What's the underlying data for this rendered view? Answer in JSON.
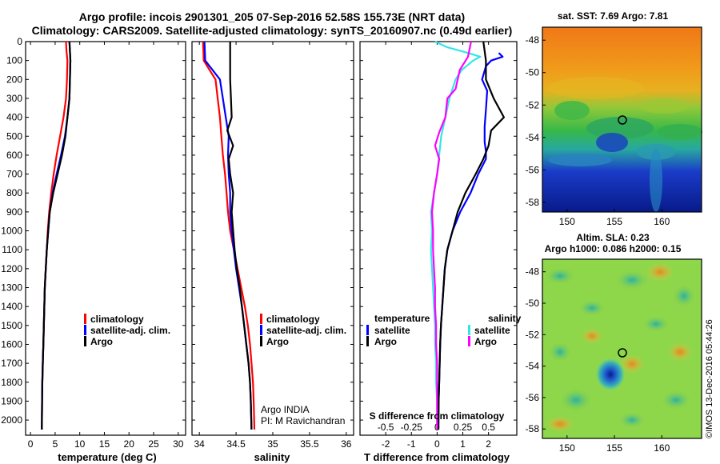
{
  "header": {
    "line1": "Argo profile: incois 2901301_205 07-Sep-2016 52.58S 155.73E (NRT data)",
    "line2": "Climatology: CARS2009. Satellite-adjusted climatology: synTS_20160907.nc (0.49d earlier)"
  },
  "colors": {
    "climatology": "#ff0000",
    "satellite": "#0000ff",
    "argo": "#000000",
    "sal_satellite": "#33e6e6",
    "sal_climatology": "#ff00ff"
  },
  "chart_data": [
    {
      "type": "line",
      "xlabel": "temperature (deg C)",
      "ylabel": "",
      "xlim": [
        -1,
        31.5
      ],
      "ylim": [
        2080,
        0
      ],
      "xticks": [
        "0",
        "5",
        "10",
        "15",
        "20",
        "25",
        "30"
      ],
      "yticks": [
        "0",
        "100",
        "200",
        "300",
        "400",
        "500",
        "600",
        "700",
        "800",
        "900",
        "1000",
        "1100",
        "1200",
        "1300",
        "1400",
        "1500",
        "1600",
        "1700",
        "1800",
        "1900",
        "2000"
      ],
      "legend": [
        "climatology",
        "satellite-adj. clim.",
        "Argo"
      ],
      "series": [
        {
          "name": "climatology",
          "color": "#ff0000",
          "points": [
            [
              7.2,
              0
            ],
            [
              7.3,
              50
            ],
            [
              7.5,
              100
            ],
            [
              7.4,
              200
            ],
            [
              7.2,
              300
            ],
            [
              6.7,
              400
            ],
            [
              6.0,
              500
            ],
            [
              5.3,
              600
            ],
            [
              4.7,
              700
            ],
            [
              4.2,
              800
            ],
            [
              3.8,
              900
            ],
            [
              3.5,
              1000
            ],
            [
              3.3,
              1100
            ],
            [
              3.1,
              1200
            ],
            [
              2.9,
              1300
            ],
            [
              2.8,
              1400
            ],
            [
              2.7,
              1500
            ],
            [
              2.6,
              1600
            ],
            [
              2.5,
              1700
            ],
            [
              2.4,
              1800
            ],
            [
              2.35,
              1900
            ],
            [
              2.3,
              2050
            ]
          ]
        },
        {
          "name": "satellite-adj. clim.",
          "color": "#0000ff",
          "points": [
            [
              7.9,
              0
            ],
            [
              8.0,
              50
            ],
            [
              8.1,
              100
            ],
            [
              8.0,
              200
            ],
            [
              7.9,
              300
            ],
            [
              7.5,
              400
            ],
            [
              7.0,
              500
            ],
            [
              6.2,
              600
            ],
            [
              5.3,
              700
            ],
            [
              4.5,
              800
            ],
            [
              3.9,
              900
            ],
            [
              3.6,
              1000
            ],
            [
              3.3,
              1100
            ],
            [
              3.1,
              1200
            ],
            [
              2.9,
              1300
            ],
            [
              2.8,
              1400
            ],
            [
              2.7,
              1500
            ],
            [
              2.6,
              1600
            ],
            [
              2.5,
              1700
            ],
            [
              2.4,
              1800
            ],
            [
              2.35,
              1900
            ],
            [
              2.3,
              2050
            ]
          ]
        },
        {
          "name": "Argo",
          "color": "#000000",
          "points": [
            [
              7.9,
              0
            ],
            [
              8.0,
              50
            ],
            [
              8.1,
              100
            ],
            [
              8.0,
              200
            ],
            [
              7.9,
              300
            ],
            [
              7.5,
              400
            ],
            [
              7.1,
              500
            ],
            [
              6.4,
              600
            ],
            [
              5.5,
              700
            ],
            [
              4.6,
              800
            ],
            [
              3.9,
              900
            ],
            [
              3.6,
              1000
            ],
            [
              3.3,
              1100
            ],
            [
              3.1,
              1200
            ],
            [
              2.9,
              1300
            ],
            [
              2.8,
              1400
            ],
            [
              2.7,
              1500
            ],
            [
              2.6,
              1600
            ],
            [
              2.5,
              1700
            ],
            [
              2.4,
              1800
            ],
            [
              2.35,
              1900
            ],
            [
              2.3,
              2050
            ]
          ]
        }
      ]
    },
    {
      "type": "line",
      "xlabel": "salinity",
      "xlim": [
        33.9,
        36.1
      ],
      "ylim": [
        2080,
        0
      ],
      "xticks": [
        "34",
        "34.5",
        "35",
        "35.5",
        "36"
      ],
      "legend": [
        "climatology",
        "satellite-adj. clim.",
        "Argo"
      ],
      "annotations": [
        "Argo INDIA",
        "PI: M Ravichandran"
      ],
      "series": [
        {
          "name": "climatology",
          "color": "#ff0000",
          "points": [
            [
              34.05,
              0
            ],
            [
              34.06,
              100
            ],
            [
              34.14,
              150
            ],
            [
              34.22,
              200
            ],
            [
              34.25,
              300
            ],
            [
              34.28,
              400
            ],
            [
              34.3,
              500
            ],
            [
              34.32,
              600
            ],
            [
              34.35,
              700
            ],
            [
              34.37,
              800
            ],
            [
              34.39,
              900
            ],
            [
              34.42,
              1000
            ],
            [
              34.47,
              1100
            ],
            [
              34.52,
              1200
            ],
            [
              34.57,
              1300
            ],
            [
              34.62,
              1400
            ],
            [
              34.66,
              1500
            ],
            [
              34.69,
              1600
            ],
            [
              34.71,
              1700
            ],
            [
              34.73,
              1800
            ],
            [
              34.74,
              1900
            ],
            [
              34.75,
              2050
            ]
          ]
        },
        {
          "name": "satellite-adj. clim.",
          "color": "#0000ff",
          "points": [
            [
              34.07,
              0
            ],
            [
              34.08,
              100
            ],
            [
              34.28,
              200
            ],
            [
              34.32,
              300
            ],
            [
              34.36,
              400
            ],
            [
              34.4,
              500
            ],
            [
              34.39,
              600
            ],
            [
              34.4,
              700
            ],
            [
              34.42,
              800
            ],
            [
              34.42,
              900
            ],
            [
              34.44,
              1000
            ],
            [
              34.47,
              1100
            ],
            [
              34.5,
              1200
            ],
            [
              34.54,
              1300
            ],
            [
              34.58,
              1400
            ],
            [
              34.61,
              1500
            ],
            [
              34.64,
              1600
            ],
            [
              34.67,
              1700
            ],
            [
              34.69,
              1800
            ],
            [
              34.7,
              1900
            ],
            [
              34.71,
              2050
            ]
          ]
        },
        {
          "name": "Argo",
          "color": "#000000",
          "points": [
            [
              34.42,
              0
            ],
            [
              34.42,
              100
            ],
            [
              34.42,
              200
            ],
            [
              34.43,
              300
            ],
            [
              34.44,
              400
            ],
            [
              34.38,
              470
            ],
            [
              34.46,
              550
            ],
            [
              34.4,
              620
            ],
            [
              34.42,
              700
            ],
            [
              34.46,
              800
            ],
            [
              34.44,
              900
            ],
            [
              34.46,
              1000
            ],
            [
              34.48,
              1100
            ],
            [
              34.51,
              1200
            ],
            [
              34.55,
              1300
            ],
            [
              34.58,
              1400
            ],
            [
              34.61,
              1500
            ],
            [
              34.64,
              1600
            ],
            [
              34.67,
              1700
            ],
            [
              34.69,
              1800
            ],
            [
              34.7,
              1900
            ],
            [
              34.71,
              2050
            ]
          ]
        }
      ]
    },
    {
      "type": "line",
      "xlabel": "T difference from climatology",
      "title_bottom": "S difference from climatology",
      "xlim": [
        -3.0,
        3.1
      ],
      "ylim": [
        2080,
        0
      ],
      "xticks": [
        "-2",
        "-1",
        "0",
        "1",
        "2"
      ],
      "s_ticks": [
        "-0.5",
        "-0.25",
        "0",
        "0.25",
        "0.5"
      ],
      "s_xlim": [
        -0.75,
        0.775
      ],
      "legend": {
        "temperature": "temperature",
        "salinity": "salinity",
        "items": [
          "satellite",
          "Argo"
        ],
        "s_items": [
          "satellite",
          "Argo"
        ]
      },
      "series": [
        {
          "name": "satellite",
          "color": "#0000ff",
          "points": [
            [
              2.4,
              60
            ],
            [
              2.55,
              80
            ],
            [
              2.1,
              100
            ],
            [
              1.9,
              130
            ],
            [
              1.75,
              200
            ],
            [
              1.95,
              260
            ],
            [
              1.9,
              360
            ],
            [
              1.85,
              450
            ],
            [
              1.85,
              530
            ],
            [
              1.9,
              580
            ],
            [
              1.9,
              620
            ],
            [
              1.6,
              700
            ],
            [
              1.3,
              800
            ],
            [
              0.9,
              900
            ],
            [
              0.6,
              1000
            ],
            [
              0.4,
              1100
            ],
            [
              0.3,
              1200
            ],
            [
              0.25,
              1300
            ],
            [
              0.2,
              1400
            ],
            [
              0.15,
              1500
            ],
            [
              0.12,
              1600
            ],
            [
              0.1,
              1700
            ],
            [
              0.08,
              1800
            ],
            [
              0.06,
              1900
            ],
            [
              0.05,
              2050
            ]
          ]
        },
        {
          "name": "Argo",
          "color": "#000000",
          "points": [
            [
              1.8,
              0
            ],
            [
              1.9,
              100
            ],
            [
              1.9,
              200
            ],
            [
              2.2,
              300
            ],
            [
              2.6,
              400
            ],
            [
              2.1,
              470
            ],
            [
              2.0,
              550
            ],
            [
              1.8,
              620
            ],
            [
              1.5,
              700
            ],
            [
              1.1,
              800
            ],
            [
              0.8,
              900
            ],
            [
              0.6,
              1000
            ],
            [
              0.4,
              1100
            ],
            [
              0.3,
              1200
            ],
            [
              0.25,
              1300
            ],
            [
              0.2,
              1400
            ],
            [
              0.15,
              1500
            ],
            [
              0.12,
              1600
            ],
            [
              0.1,
              1700
            ],
            [
              0.08,
              1800
            ],
            [
              0.06,
              1900
            ],
            [
              0.05,
              2050
            ]
          ]
        },
        {
          "name": "S satellite",
          "color": "#33e6e6",
          "points": [
            [
              -0.02,
              0
            ],
            [
              0.1,
              30
            ],
            [
              0.3,
              60
            ],
            [
              0.42,
              80
            ],
            [
              0.35,
              100
            ],
            [
              0.24,
              150
            ],
            [
              0.18,
              200
            ],
            [
              0.12,
              300
            ],
            [
              0.08,
              400
            ],
            [
              0.04,
              500
            ],
            [
              0.02,
              600
            ],
            [
              0.0,
              700
            ],
            [
              -0.03,
              800
            ],
            [
              -0.06,
              900
            ],
            [
              -0.05,
              1000
            ],
            [
              -0.06,
              1100
            ],
            [
              -0.05,
              1200
            ],
            [
              -0.04,
              1300
            ],
            [
              -0.03,
              1400
            ],
            [
              -0.02,
              1500
            ],
            [
              -0.02,
              1600
            ],
            [
              -0.01,
              1700
            ],
            [
              -0.01,
              1800
            ],
            [
              0.0,
              1900
            ],
            [
              0.0,
              2050
            ]
          ]
        },
        {
          "name": "S Argo",
          "color": "#ff00ff",
          "points": [
            [
              0.33,
              0
            ],
            [
              0.3,
              80
            ],
            [
              0.22,
              150
            ],
            [
              0.18,
              250
            ],
            [
              0.1,
              300
            ],
            [
              0.08,
              400
            ],
            [
              0.02,
              480
            ],
            [
              -0.02,
              550
            ],
            [
              0.02,
              620
            ],
            [
              0.0,
              700
            ],
            [
              -0.03,
              800
            ],
            [
              -0.05,
              900
            ],
            [
              -0.04,
              1000
            ],
            [
              -0.04,
              1100
            ],
            [
              -0.03,
              1200
            ],
            [
              -0.02,
              1300
            ],
            [
              -0.02,
              1400
            ],
            [
              -0.01,
              1500
            ],
            [
              -0.01,
              1600
            ],
            [
              0.0,
              1700
            ],
            [
              0.0,
              1800
            ],
            [
              0.0,
              1900
            ],
            [
              0.0,
              2050
            ]
          ]
        }
      ]
    }
  ],
  "maps": {
    "sst": {
      "title": "sat. SST: 7.69 Argo: 7.81",
      "yticks": [
        "-48",
        "-50",
        "-52",
        "-54",
        "-56",
        "-58"
      ],
      "xticks": [
        "150",
        "155",
        "160"
      ]
    },
    "sla": {
      "title1": "Altim. SLA: 0.23",
      "title2": "Argo h1000: 0.086 h2000: 0.15",
      "yticks": [
        "-48",
        "-50",
        "-52",
        "-54",
        "-56",
        "-58"
      ],
      "xticks": [
        "150",
        "155",
        "160"
      ]
    }
  },
  "credit": "©IMOS 13-Dec-2016 05:44:26"
}
